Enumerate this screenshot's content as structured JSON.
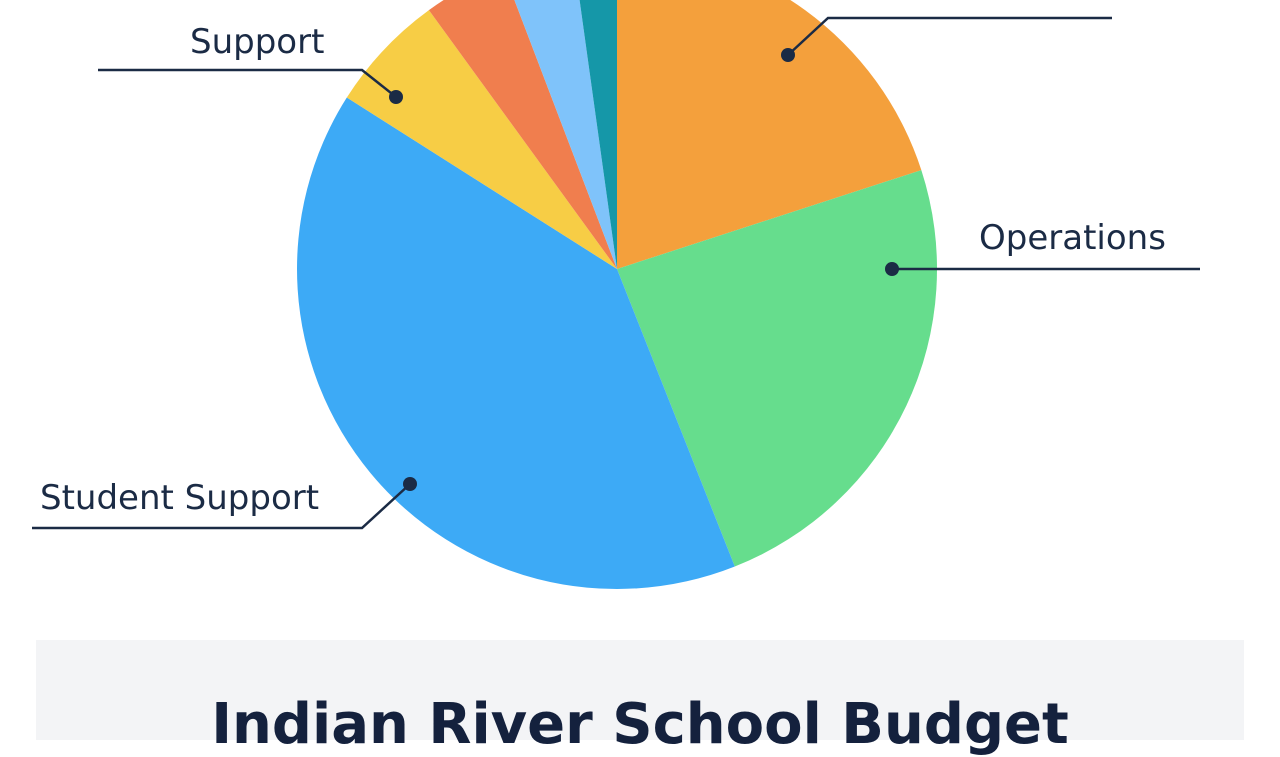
{
  "chart_data": {
    "type": "pie",
    "title": "Indian River School Budget",
    "slices": [
      {
        "label": "",
        "value": 20.0,
        "color": "#f4a03c"
      },
      {
        "label": "Operations",
        "value": 24.0,
        "color": "#66dd8d"
      },
      {
        "label": "Student Support",
        "value": 40.0,
        "color": "#3daaf6"
      },
      {
        "label": "Support",
        "value": 6.0,
        "color": "#f7cd45"
      },
      {
        "label": "",
        "value": 4.2,
        "color": "#f07e4e"
      },
      {
        "label": "",
        "value": 3.6,
        "color": "#7fc3fa"
      },
      {
        "label": "",
        "value": 2.2,
        "color": "#1597a8"
      }
    ]
  }
}
